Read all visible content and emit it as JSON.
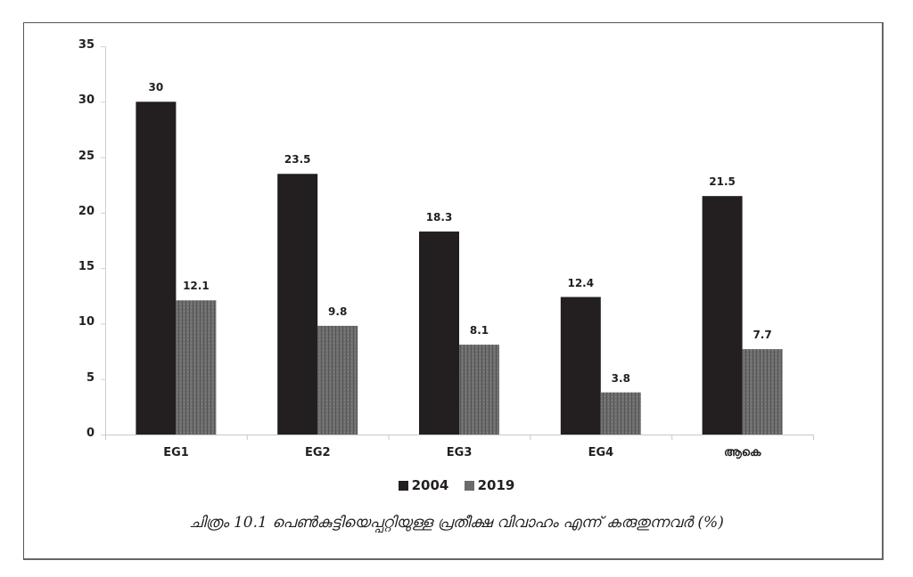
{
  "chart_data": {
    "type": "bar",
    "title": "",
    "categories": [
      "EG1",
      "EG2",
      "EG3",
      "EG4",
      "ആകെ"
    ],
    "series": [
      {
        "name": "2004",
        "values": [
          30,
          23.5,
          18.3,
          12.4,
          21.5
        ],
        "color": "#231f20"
      },
      {
        "name": "2019",
        "values": [
          12.1,
          9.8,
          8.1,
          3.8,
          7.7
        ],
        "color": "#6b6b6b"
      }
    ],
    "data_labels": [
      [
        "30",
        "23.5",
        "18.3",
        "12.4",
        "21.5"
      ],
      [
        "12.1",
        "9.8",
        "8.1",
        "3.8",
        "7.7"
      ]
    ],
    "xlabel": "",
    "ylabel": "",
    "ylim": [
      0,
      35
    ],
    "yticks": [
      "0",
      "5",
      "10",
      "15",
      "20",
      "25",
      "30",
      "35"
    ],
    "grid": false,
    "legend_position": "bottom"
  },
  "legend": [
    {
      "label": "2004",
      "color": "#231f20"
    },
    {
      "label": "2019",
      "color": "#6b6b6b"
    }
  ],
  "caption": "ചിത്രം 10.1 പെൺകുട്ടിയെപ്പറ്റിയുള്ള പ്രതീക്ഷ വിവാഹം എന്ന് കരുതുന്നവർ (%)"
}
